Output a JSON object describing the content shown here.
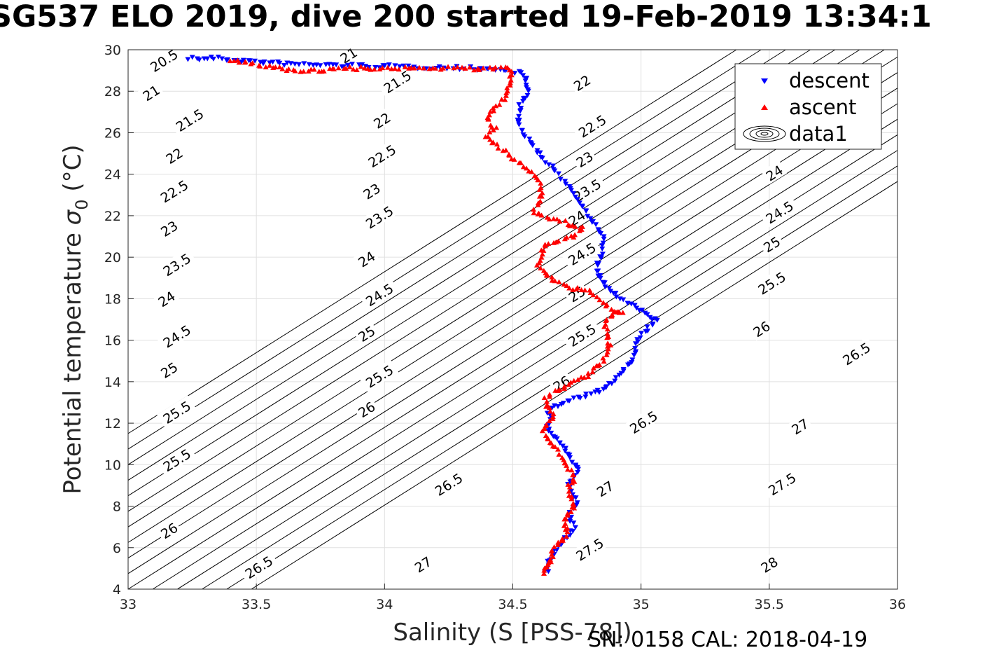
{
  "title": "SG537 ELO 2019, dive 200 started 19-Feb-2019 13:34:1",
  "footer": "SN: 0158  CAL: 2018-04-19",
  "colors": {
    "descent": "#0000ff",
    "ascent": "#ff0000",
    "contour": "#000000",
    "grid": "#e0e0e0"
  },
  "chart_data": {
    "type": "scatter",
    "xlabel": "Salinity (S [PSS-78])",
    "ylabel": "Potential temperature σ₀ (°C)",
    "ylabel_parts": {
      "main": "Potential temperature ",
      "sigma": "σ",
      "sub": "0",
      "unit": " (°C)"
    },
    "xlim": [
      33,
      36
    ],
    "ylim": [
      4,
      30
    ],
    "xticks": [
      "33",
      "33.5",
      "34",
      "34.5",
      "35",
      "35.5",
      "36"
    ],
    "yticks": [
      "4",
      "6",
      "8",
      "10",
      "12",
      "14",
      "16",
      "18",
      "20",
      "22",
      "24",
      "26",
      "28",
      "30"
    ],
    "grid": true,
    "legend_position": "top-right",
    "legend": [
      "descent",
      "ascent",
      "data1"
    ],
    "contour_levels": [
      "20.5",
      "21",
      "21.5",
      "22",
      "22.5",
      "23",
      "23.5",
      "24",
      "24.5",
      "25",
      "25.5",
      "26",
      "26.5",
      "27",
      "27.5",
      "28"
    ],
    "series": [
      {
        "name": "descent",
        "marker": "triangle-down",
        "points": [
          [
            33.24,
            29.6
          ],
          [
            33.28,
            29.55
          ],
          [
            33.32,
            29.6
          ],
          [
            33.51,
            29.4
          ],
          [
            33.62,
            29.3
          ],
          [
            34.33,
            29.1
          ],
          [
            34.42,
            29.05
          ],
          [
            34.52,
            28.9
          ],
          [
            34.55,
            28.7
          ],
          [
            34.55,
            28.3
          ],
          [
            34.56,
            27.8
          ],
          [
            34.53,
            27.4
          ],
          [
            34.52,
            26.8
          ],
          [
            34.53,
            26.3
          ],
          [
            34.55,
            25.8
          ],
          [
            34.6,
            25.1
          ],
          [
            34.62,
            24.7
          ],
          [
            34.66,
            24.2
          ],
          [
            34.7,
            23.7
          ],
          [
            34.73,
            23.2
          ],
          [
            34.75,
            22.8
          ],
          [
            34.78,
            22.3
          ],
          [
            34.8,
            21.9
          ],
          [
            34.82,
            21.5
          ],
          [
            34.85,
            21.0
          ],
          [
            34.85,
            20.5
          ],
          [
            34.84,
            19.9
          ],
          [
            34.83,
            19.4
          ],
          [
            34.84,
            18.9
          ],
          [
            34.87,
            18.5
          ],
          [
            34.91,
            18.1
          ],
          [
            34.97,
            17.6
          ],
          [
            35.01,
            17.3
          ],
          [
            35.06,
            16.9
          ],
          [
            35.02,
            16.5
          ],
          [
            34.99,
            16.0
          ],
          [
            34.98,
            15.5
          ],
          [
            34.96,
            15.0
          ],
          [
            34.93,
            14.5
          ],
          [
            34.9,
            14.0
          ],
          [
            34.85,
            13.6
          ],
          [
            34.78,
            13.3
          ],
          [
            34.71,
            13.1
          ],
          [
            34.66,
            12.8
          ],
          [
            34.63,
            12.5
          ],
          [
            34.66,
            12.2
          ],
          [
            34.63,
            11.9
          ],
          [
            34.65,
            11.5
          ],
          [
            34.68,
            11.1
          ],
          [
            34.7,
            10.8
          ],
          [
            34.72,
            10.4
          ],
          [
            34.74,
            10.0
          ],
          [
            34.76,
            9.7
          ],
          [
            34.74,
            9.4
          ],
          [
            34.72,
            9.0
          ],
          [
            34.73,
            8.6
          ],
          [
            34.75,
            8.2
          ],
          [
            34.73,
            7.8
          ],
          [
            34.72,
            7.4
          ],
          [
            34.74,
            7.0
          ],
          [
            34.72,
            6.6
          ],
          [
            34.69,
            6.3
          ],
          [
            34.67,
            5.9
          ],
          [
            34.65,
            5.6
          ],
          [
            34.64,
            5.3
          ],
          [
            34.64,
            5.0
          ],
          [
            34.63,
            4.8
          ]
        ]
      },
      {
        "name": "ascent",
        "marker": "triangle-up",
        "points": [
          [
            34.62,
            4.75
          ],
          [
            34.63,
            5.0
          ],
          [
            34.64,
            5.3
          ],
          [
            34.65,
            5.6
          ],
          [
            34.66,
            5.9
          ],
          [
            34.68,
            6.2
          ],
          [
            34.7,
            6.5
          ],
          [
            34.71,
            6.8
          ],
          [
            34.7,
            7.2
          ],
          [
            34.71,
            7.5
          ],
          [
            34.73,
            7.9
          ],
          [
            34.74,
            8.2
          ],
          [
            34.72,
            8.6
          ],
          [
            34.72,
            9.0
          ],
          [
            34.74,
            9.3
          ],
          [
            34.73,
            9.7
          ],
          [
            34.7,
            10.0
          ],
          [
            34.69,
            10.4
          ],
          [
            34.67,
            10.8
          ],
          [
            34.64,
            11.2
          ],
          [
            34.62,
            11.6
          ],
          [
            34.63,
            12.0
          ],
          [
            34.66,
            12.4
          ],
          [
            34.63,
            12.8
          ],
          [
            34.63,
            13.2
          ],
          [
            34.67,
            13.6
          ],
          [
            34.72,
            13.9
          ],
          [
            34.78,
            14.2
          ],
          [
            34.82,
            14.6
          ],
          [
            34.85,
            15.0
          ],
          [
            34.87,
            15.4
          ],
          [
            34.88,
            15.8
          ],
          [
            34.87,
            16.2
          ],
          [
            34.86,
            16.6
          ],
          [
            34.87,
            17.0
          ],
          [
            34.9,
            17.4
          ],
          [
            34.93,
            17.3
          ],
          [
            34.88,
            17.5
          ],
          [
            34.84,
            18.0
          ],
          [
            34.8,
            18.4
          ],
          [
            34.73,
            18.5
          ],
          [
            34.67,
            18.8
          ],
          [
            34.63,
            19.2
          ],
          [
            34.6,
            19.6
          ],
          [
            34.61,
            20.0
          ],
          [
            34.62,
            20.5
          ],
          [
            34.67,
            20.8
          ],
          [
            34.74,
            21.0
          ],
          [
            34.77,
            21.4
          ],
          [
            34.7,
            21.7
          ],
          [
            34.63,
            21.9
          ],
          [
            34.58,
            22.2
          ],
          [
            34.6,
            22.6
          ],
          [
            34.61,
            23.0
          ],
          [
            34.61,
            23.4
          ],
          [
            34.6,
            23.8
          ],
          [
            34.56,
            24.2
          ],
          [
            34.52,
            24.6
          ],
          [
            34.48,
            25.0
          ],
          [
            34.44,
            25.4
          ],
          [
            34.4,
            25.8
          ],
          [
            34.43,
            26.2
          ],
          [
            34.4,
            26.7
          ],
          [
            34.41,
            27.0
          ],
          [
            34.45,
            27.4
          ],
          [
            34.47,
            27.8
          ],
          [
            34.48,
            28.2
          ],
          [
            34.49,
            28.6
          ],
          [
            34.5,
            29.0
          ],
          [
            34.47,
            29.1
          ],
          [
            34.2,
            29.12
          ],
          [
            33.95,
            29.12
          ],
          [
            33.85,
            29.1
          ],
          [
            33.78,
            29.05
          ],
          [
            33.7,
            29.0
          ],
          [
            33.6,
            29.1
          ],
          [
            33.52,
            29.25
          ],
          [
            33.45,
            29.4
          ],
          [
            33.4,
            29.45
          ]
        ]
      }
    ],
    "contour_points": [
      {
        "label": "20.5",
        "x": 33.14,
        "y": 29.48
      },
      {
        "label": "21",
        "x": 33.86,
        "y": 29.73
      },
      {
        "label": "21",
        "x": 33.09,
        "y": 27.92
      },
      {
        "label": "21.5",
        "x": 34.05,
        "y": 28.46
      },
      {
        "label": "21.5",
        "x": 33.24,
        "y": 26.61
      },
      {
        "label": "22",
        "x": 34.77,
        "y": 28.4
      },
      {
        "label": "22",
        "x": 33.99,
        "y": 26.59
      },
      {
        "label": "22.5",
        "x": 34.81,
        "y": 26.32
      },
      {
        "label": "22",
        "x": 33.18,
        "y": 24.89
      },
      {
        "label": "22.5",
        "x": 33.99,
        "y": 24.88
      },
      {
        "label": "23",
        "x": 34.78,
        "y": 24.72
      },
      {
        "label": "22.5",
        "x": 33.18,
        "y": 23.18
      },
      {
        "label": "23",
        "x": 33.95,
        "y": 23.18
      },
      {
        "label": "23.5",
        "x": 34.79,
        "y": 23.23
      },
      {
        "label": "24",
        "x": 35.52,
        "y": 24.06
      },
      {
        "label": "23",
        "x": 33.16,
        "y": 21.38
      },
      {
        "label": "23.5",
        "x": 33.98,
        "y": 21.93
      },
      {
        "label": "24",
        "x": 34.75,
        "y": 21.89
      },
      {
        "label": "24.5",
        "x": 35.54,
        "y": 22.17
      },
      {
        "label": "23.5",
        "x": 33.19,
        "y": 19.64
      },
      {
        "label": "24",
        "x": 33.93,
        "y": 19.91
      },
      {
        "label": "24.5",
        "x": 34.77,
        "y": 20.16
      },
      {
        "label": "25",
        "x": 35.51,
        "y": 20.62
      },
      {
        "label": "24",
        "x": 33.15,
        "y": 17.99
      },
      {
        "label": "24.5",
        "x": 33.98,
        "y": 18.19
      },
      {
        "label": "25",
        "x": 34.75,
        "y": 18.22
      },
      {
        "label": "25.5",
        "x": 35.51,
        "y": 18.75
      },
      {
        "label": "24.5",
        "x": 33.19,
        "y": 16.19
      },
      {
        "label": "25",
        "x": 33.93,
        "y": 16.31
      },
      {
        "label": "25.5",
        "x": 34.77,
        "y": 16.24
      },
      {
        "label": "26",
        "x": 35.47,
        "y": 16.54
      },
      {
        "label": "25",
        "x": 33.16,
        "y": 14.56
      },
      {
        "label": "25.5",
        "x": 33.98,
        "y": 14.26
      },
      {
        "label": "26",
        "x": 34.69,
        "y": 13.91
      },
      {
        "label": "26.5",
        "x": 35.84,
        "y": 15.35
      },
      {
        "label": "25.5",
        "x": 33.19,
        "y": 12.53
      },
      {
        "label": "26",
        "x": 33.93,
        "y": 12.66
      },
      {
        "label": "26.5",
        "x": 35.01,
        "y": 12.05
      },
      {
        "label": "27",
        "x": 35.62,
        "y": 11.84
      },
      {
        "label": "25.5",
        "x": 33.19,
        "y": 10.22
      },
      {
        "label": "26.5",
        "x": 34.25,
        "y": 9.05
      },
      {
        "label": "27",
        "x": 34.86,
        "y": 8.84
      },
      {
        "label": "27.5",
        "x": 35.55,
        "y": 9.07
      },
      {
        "label": "26",
        "x": 33.16,
        "y": 6.82
      },
      {
        "label": "26.5",
        "x": 33.51,
        "y": 5.06
      },
      {
        "label": "27",
        "x": 34.15,
        "y": 5.19
      },
      {
        "label": "27.5",
        "x": 34.8,
        "y": 5.92
      },
      {
        "label": "28",
        "x": 35.5,
        "y": 5.18
      }
    ]
  }
}
